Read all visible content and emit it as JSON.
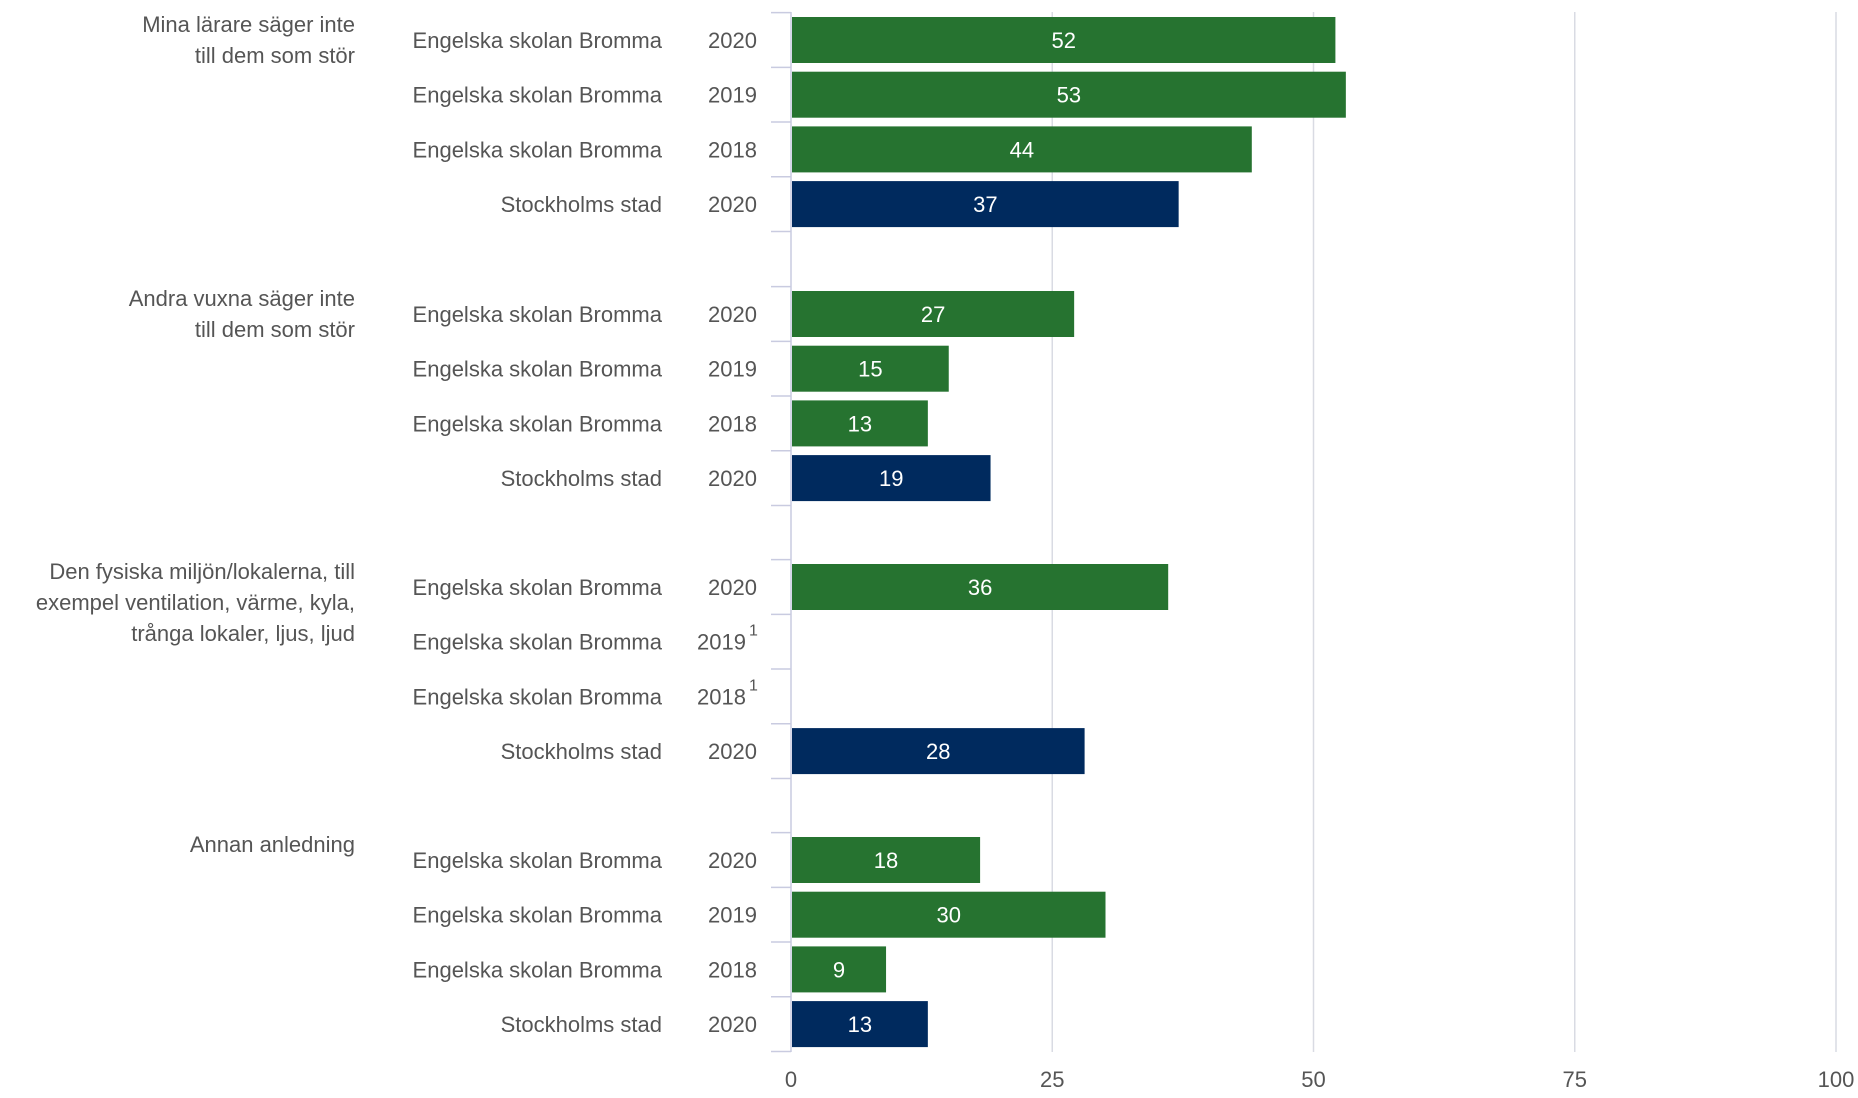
{
  "chart_data": {
    "type": "bar",
    "orientation": "horizontal",
    "xlim": [
      0,
      100
    ],
    "xticks": [
      "0",
      "25",
      "50",
      "75",
      "100"
    ],
    "grid": true,
    "colors": {
      "school": "#267330",
      "city": "#002a5e"
    },
    "groups": [
      {
        "label_lines": [
          "Mina lärare säger inte",
          "till dem som stör"
        ],
        "rows": [
          {
            "org": "Engelska skolan Bromma",
            "year": "2020",
            "note": "",
            "value": 52,
            "series": "school"
          },
          {
            "org": "Engelska skolan Bromma",
            "year": "2019",
            "note": "",
            "value": 53,
            "series": "school"
          },
          {
            "org": "Engelska skolan Bromma",
            "year": "2018",
            "note": "",
            "value": 44,
            "series": "school"
          },
          {
            "org": "Stockholms stad",
            "year": "2020",
            "note": "",
            "value": 37,
            "series": "city"
          }
        ]
      },
      {
        "label_lines": [
          "Andra vuxna säger inte",
          "till dem som stör"
        ],
        "rows": [
          {
            "org": "Engelska skolan Bromma",
            "year": "2020",
            "note": "",
            "value": 27,
            "series": "school"
          },
          {
            "org": "Engelska skolan Bromma",
            "year": "2019",
            "note": "",
            "value": 15,
            "series": "school"
          },
          {
            "org": "Engelska skolan Bromma",
            "year": "2018",
            "note": "",
            "value": 13,
            "series": "school"
          },
          {
            "org": "Stockholms stad",
            "year": "2020",
            "note": "",
            "value": 19,
            "series": "city"
          }
        ]
      },
      {
        "label_lines": [
          "Den fysiska miljön/lokalerna, till",
          "exempel ventilation, värme, kyla,",
          "trånga lokaler, ljus, ljud"
        ],
        "rows": [
          {
            "org": "Engelska skolan Bromma",
            "year": "2020",
            "note": "",
            "value": 36,
            "series": "school"
          },
          {
            "org": "Engelska skolan Bromma",
            "year": "2019",
            "note": "1",
            "value": null,
            "series": "school"
          },
          {
            "org": "Engelska skolan Bromma",
            "year": "2018",
            "note": "1",
            "value": null,
            "series": "school"
          },
          {
            "org": "Stockholms stad",
            "year": "2020",
            "note": "",
            "value": 28,
            "series": "city"
          }
        ]
      },
      {
        "label_lines": [
          "Annan anledning"
        ],
        "rows": [
          {
            "org": "Engelska skolan Bromma",
            "year": "2020",
            "note": "",
            "value": 18,
            "series": "school"
          },
          {
            "org": "Engelska skolan Bromma",
            "year": "2019",
            "note": "",
            "value": 30,
            "series": "school"
          },
          {
            "org": "Engelska skolan Bromma",
            "year": "2018",
            "note": "",
            "value": 9,
            "series": "school"
          },
          {
            "org": "Stockholms stad",
            "year": "2020",
            "note": "",
            "value": 13,
            "series": "city"
          }
        ]
      }
    ]
  }
}
